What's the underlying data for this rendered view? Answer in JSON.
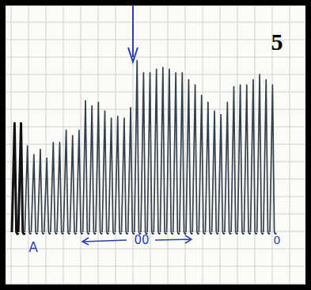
{
  "chart_data": {
    "type": "line",
    "title": "5",
    "series": [
      {
        "name": null,
        "color": "#34404c",
        "values": [
          6.2,
          6.2,
          4.9,
          4.4,
          4.7,
          4.2,
          5.1,
          5.1,
          5.8,
          5.5,
          5.8,
          7.5,
          7.2,
          7.4,
          6.9,
          6.5,
          6.6,
          6.5,
          7.1,
          9.8,
          9.1,
          9.1,
          9.3,
          9.4,
          9.3,
          9.1,
          9.1,
          8.7,
          8.4,
          7.8,
          7.4,
          6.9,
          6.7,
          7.4,
          8.3,
          8.4,
          8.4,
          8.7,
          9.0,
          8.7,
          8.4
        ]
      }
    ],
    "annotations": [
      "A",
      "00",
      "0"
    ],
    "ylim": [
      0,
      13
    ],
    "grid": true,
    "tick_labels": false
  }
}
